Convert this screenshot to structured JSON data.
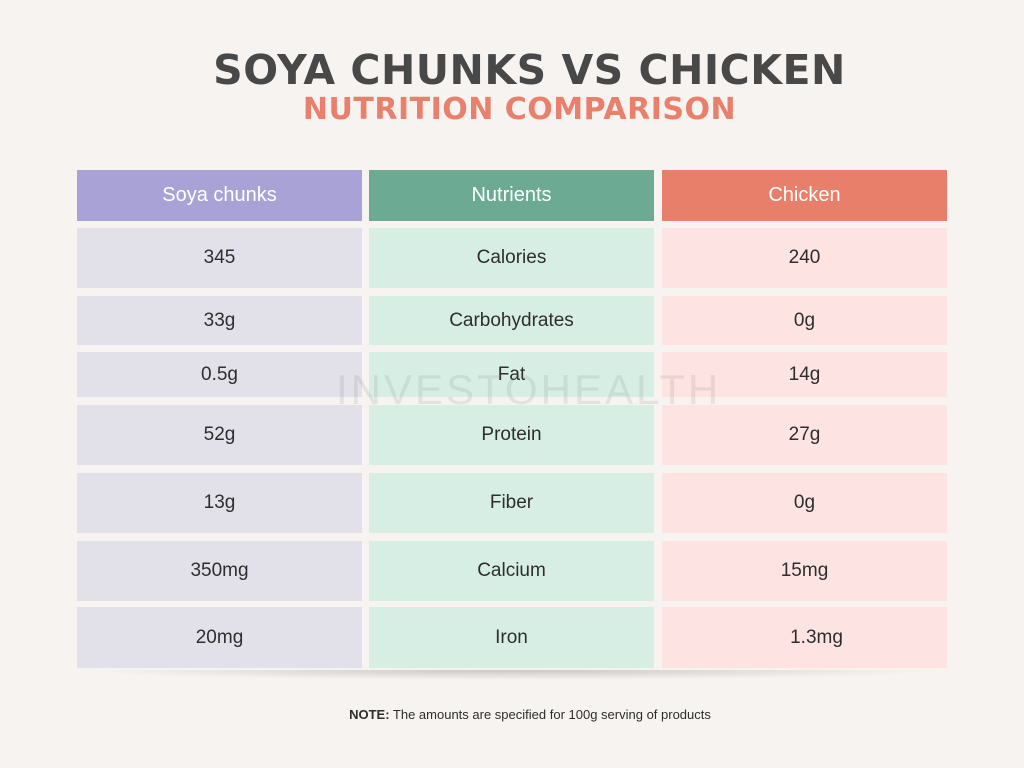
{
  "title": {
    "main": "SOYA CHUNKS VS CHICKEN",
    "sub": "NUTRITION COMPARISON"
  },
  "table": {
    "headers": {
      "soya": "Soya chunks",
      "nutrients": "Nutrients",
      "chicken": "Chicken"
    },
    "rows": [
      {
        "soya": "345",
        "nutrient": "Calories",
        "chicken": "240"
      },
      {
        "soya": "33g",
        "nutrient": "Carbohydrates",
        "chicken": "0g"
      },
      {
        "soya": "0.5g",
        "nutrient": "Fat",
        "chicken": "14g"
      },
      {
        "soya": "52g",
        "nutrient": "Protein",
        "chicken": "27g"
      },
      {
        "soya": "13g",
        "nutrient": "Fiber",
        "chicken": "0g"
      },
      {
        "soya": "350mg",
        "nutrient": "Calcium",
        "chicken": "15mg"
      },
      {
        "soya": "20mg",
        "nutrient": "Iron",
        "chicken": "1.3mg"
      }
    ]
  },
  "watermark": "INVESTOHEALTH",
  "note": {
    "label": "NOTE:",
    "text": " The amounts are specified for 100g serving of products"
  },
  "colors": {
    "soya_header": "#a8a2d6",
    "nutrients_header": "#6daa94",
    "chicken_header": "#e87f6b",
    "subtitle": "#e8806c",
    "title": "#484848"
  }
}
